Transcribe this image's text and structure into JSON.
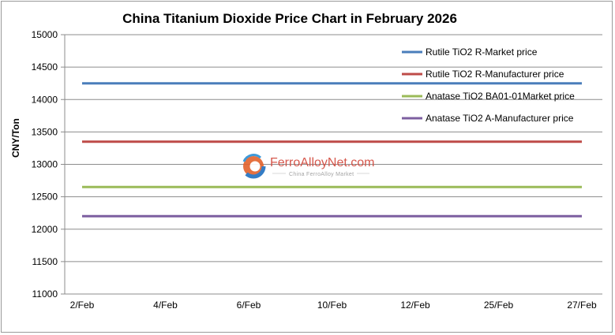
{
  "chart_data": {
    "type": "line",
    "title": "China Titanium Dioxide Price Chart in February 2026",
    "xlabel": "",
    "ylabel": "CNY/Ton",
    "ylim": [
      11000,
      15000
    ],
    "yticks": [
      11000,
      11500,
      12000,
      12500,
      13000,
      13500,
      14000,
      14500,
      15000
    ],
    "categories": [
      "2/Feb",
      "4/Feb",
      "6/Feb",
      "10/Feb",
      "12/Feb",
      "25/Feb",
      "27/Feb"
    ],
    "grid": "horizontal",
    "legend_position": "top-right",
    "series": [
      {
        "name": "Rutile TiO2 R-Market price",
        "values": [
          14250,
          14250,
          14250,
          14250,
          14250,
          14250,
          14250
        ],
        "color": "#4a7ebb"
      },
      {
        "name": "Rutile  TiO2 R-Manufacturer price",
        "values": [
          13350,
          13350,
          13350,
          13350,
          13350,
          13350,
          13350
        ],
        "color": "#be4b48"
      },
      {
        "name": "Anatase  TiO2 BA01-01Market price",
        "values": [
          12650,
          12650,
          12650,
          12650,
          12650,
          12650,
          12650
        ],
        "color": "#9bbb59"
      },
      {
        "name": "Anatase  TiO2 A-Manufacturer price",
        "values": [
          12200,
          12200,
          12200,
          12200,
          12200,
          12200,
          12200
        ],
        "color": "#7d5fa0"
      }
    ]
  },
  "watermark": {
    "name": "FerroAlloyNet.com",
    "tagline": "China FerroAlloy Market",
    "color": "#d2473a"
  }
}
